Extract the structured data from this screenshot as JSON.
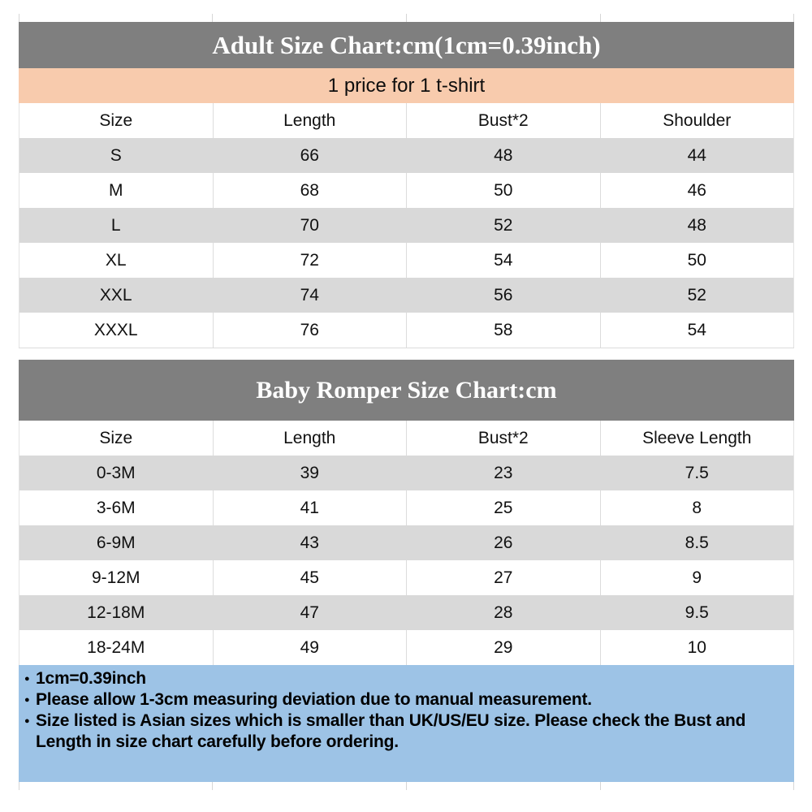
{
  "adult": {
    "title": "Adult Size Chart:cm(1cm=0.39inch)",
    "subtitle": "1 price for 1 t-shirt",
    "columns": [
      "Size",
      "Length",
      "Bust*2",
      "Shoulder"
    ],
    "rows": [
      [
        "S",
        "66",
        "48",
        "44"
      ],
      [
        "M",
        "68",
        "50",
        "46"
      ],
      [
        "L",
        "70",
        "52",
        "48"
      ],
      [
        "XL",
        "72",
        "54",
        "50"
      ],
      [
        "XXL",
        "74",
        "56",
        "52"
      ],
      [
        "XXXL",
        "76",
        "58",
        "54"
      ]
    ]
  },
  "baby": {
    "title": "Baby Romper Size Chart:cm",
    "columns": [
      "Size",
      "Length",
      "Bust*2",
      "Sleeve Length"
    ],
    "rows": [
      [
        "0-3M",
        "39",
        "23",
        "7.5"
      ],
      [
        "3-6M",
        "41",
        "25",
        "8"
      ],
      [
        "6-9M",
        "43",
        "26",
        "8.5"
      ],
      [
        "9-12M",
        "45",
        "27",
        "9"
      ],
      [
        "12-18M",
        "47",
        "28",
        "9.5"
      ],
      [
        "18-24M",
        "49",
        "29",
        "10"
      ]
    ]
  },
  "notes": {
    "bullet": "●",
    "items": [
      "1cm=0.39inch",
      "Please allow 1-3cm measuring deviation due to manual measurement.",
      "Size listed is Asian sizes which is smaller than UK/US/EU size. Please check the Bust and Length in size chart carefully before ordering."
    ]
  },
  "colors": {
    "title_bar_bg": "#7f7f7f",
    "title_text": "#ffffff",
    "subtitle_bg": "#f8cbad",
    "row_alt_bg": "#d9d9d9",
    "notes_bg": "#9dc3e6",
    "grid_line": "#dcdcdc"
  }
}
